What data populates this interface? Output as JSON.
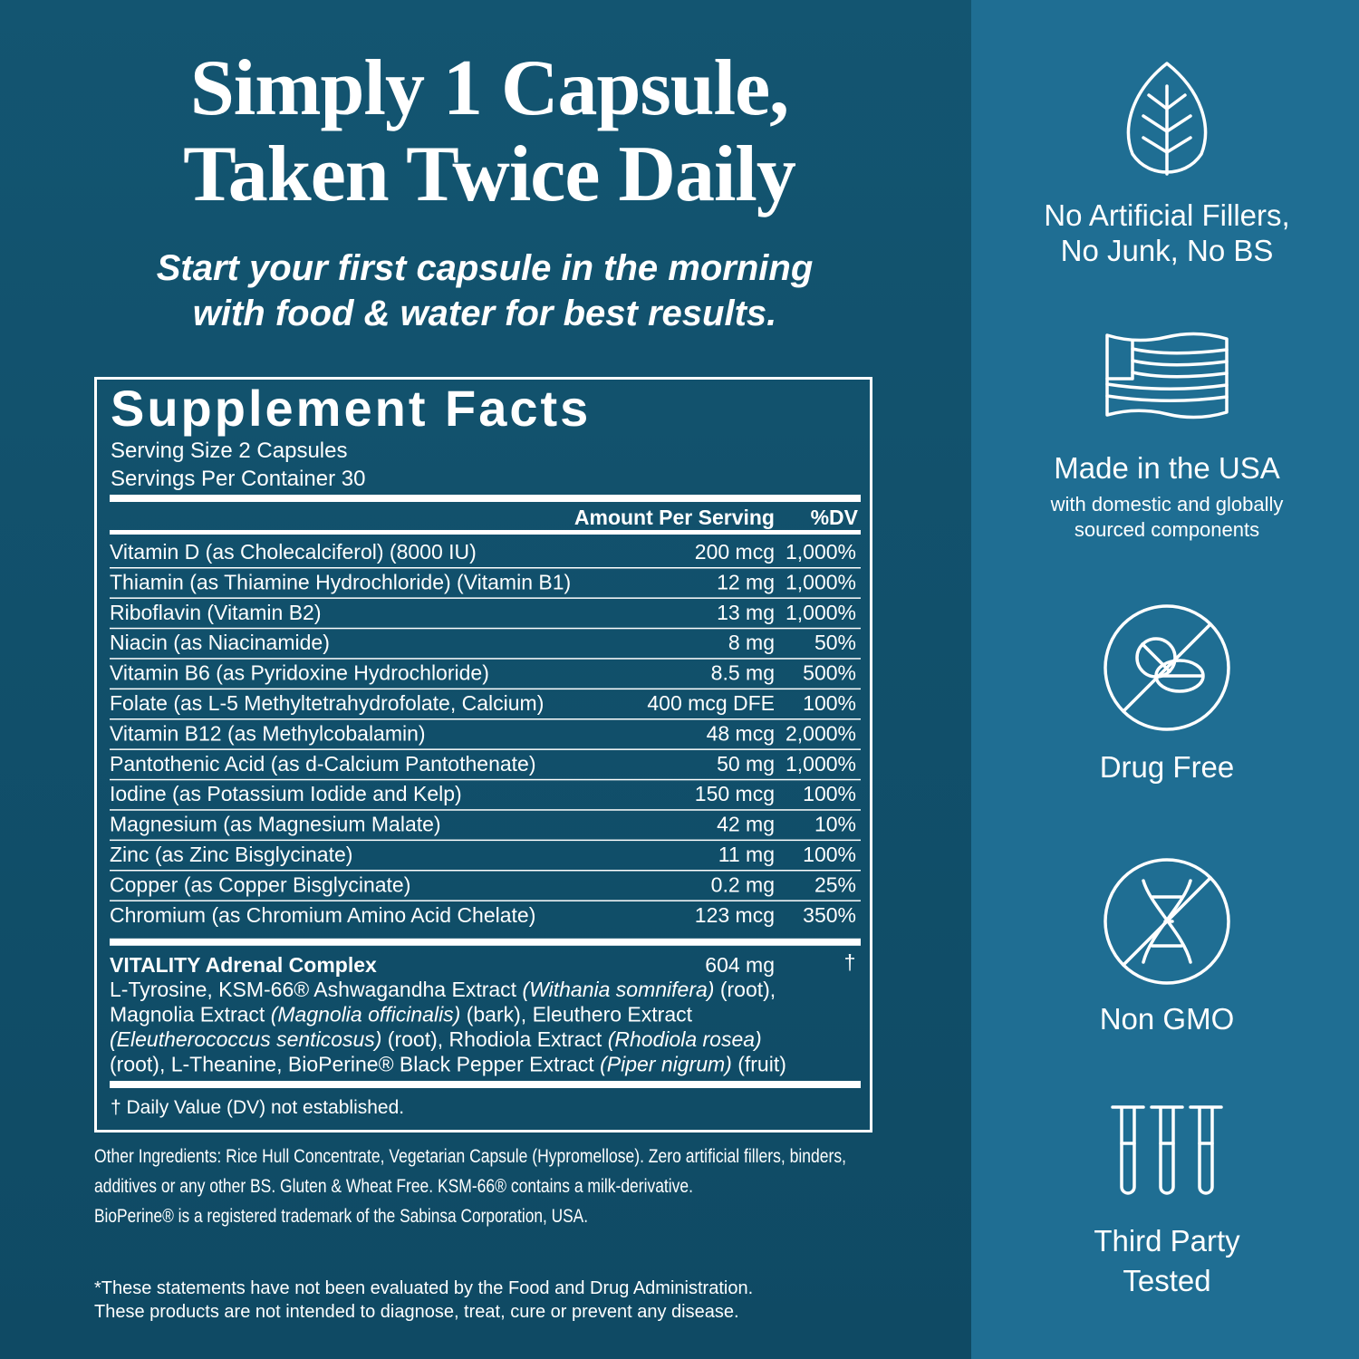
{
  "headline": {
    "lines": [
      "Simply 1 Capsule,",
      "Taken Twice Daily"
    ]
  },
  "subhead": {
    "lines": [
      "Start your first capsule in the morning",
      "with food & water for best results."
    ]
  },
  "facts": {
    "title": "Supplement Facts",
    "serving_size": "Serving Size 2 Capsules",
    "servings_per_container": "Servings Per Container 30",
    "header": {
      "amount": "Amount Per Serving",
      "dv": "%DV"
    },
    "rows": [
      [
        "Vitamin D (as Cholecalciferol) (8000 IU)",
        "200 mcg",
        "1,000%"
      ],
      [
        "Thiamin (as Thiamine Hydrochloride) (Vitamin B1)",
        "12 mg",
        "1,000%"
      ],
      [
        "Riboflavin (Vitamin B2)",
        "13 mg",
        "1,000%"
      ],
      [
        "Niacin (as Niacinamide)",
        "8 mg",
        "50%"
      ],
      [
        "Vitamin B6 (as Pyridoxine Hydrochloride)",
        "8.5 mg",
        "500%"
      ],
      [
        "Folate (as L-5 Methyltetrahydrofolate, Calcium)",
        "400 mcg DFE",
        "100%"
      ],
      [
        "Vitamin B12 (as Methylcobalamin)",
        "48 mcg",
        "2,000%"
      ],
      [
        "Pantothenic Acid (as d-Calcium Pantothenate)",
        "50 mg",
        "1,000%"
      ],
      [
        "Iodine (as Potassium Iodide and Kelp)",
        "150 mcg",
        "100%"
      ],
      [
        "Magnesium (as Magnesium Malate)",
        "42 mg",
        "10%"
      ],
      [
        "Zinc (as Zinc Bisglycinate)",
        "11 mg",
        "100%"
      ],
      [
        "Copper (as Copper Bisglycinate)",
        "0.2 mg",
        "25%"
      ],
      [
        "Chromium (as Chromium Amino Acid Chelate)",
        "123 mcg",
        "350%"
      ]
    ],
    "complex": {
      "name": "VITALITY Adrenal Complex",
      "amount": "604 mg",
      "dv": "†",
      "description": [
        [
          {
            "text": "L-Tyrosine, KSM-66® Ashwagandha Extract "
          },
          {
            "text": "(Withania somnifera)",
            "style": "italic"
          },
          {
            "text": " (root),"
          }
        ],
        [
          {
            "text": "Magnolia Extract "
          },
          {
            "text": "(Magnolia officinalis)",
            "style": "italic"
          },
          {
            "text": " (bark), Eleuthero Extract"
          }
        ],
        [
          {
            "text": "(Eleutherococcus senticosus)",
            "style": "italic"
          },
          {
            "text": " (root), Rhodiola Extract "
          },
          {
            "text": "(Rhodiola rosea)",
            "style": "italic"
          }
        ],
        [
          {
            "text": "(root), L-Theanine, BioPerine® Black Pepper Extract "
          },
          {
            "text": "(Piper nigrum)",
            "style": "italic"
          },
          {
            "text": " (fruit)"
          }
        ]
      ]
    },
    "footnote": "† Daily Value (DV) not established."
  },
  "other_ingredients": {
    "lines": [
      "Other Ingredients: Rice Hull Concentrate, Vegetarian Capsule (Hypromellose). Zero artificial fillers, binders,",
      "additives or any other BS. Gluten & Wheat Free. KSM-66® contains a milk-derivative.",
      "BioPerine® is a registered trademark of the Sabinsa Corporation, USA."
    ]
  },
  "disclaimer": {
    "lines": [
      "*These statements have not been evaluated by the Food and Drug Administration.",
      "These products are not intended to diagnose, treat, cure or prevent any disease."
    ]
  },
  "features": [
    {
      "title": [
        "No Artificial Fillers,",
        "No Junk, No BS"
      ]
    },
    {
      "title": [
        "Made in the USA"
      ],
      "subtitle": [
        "with domestic and globally",
        "sourced components"
      ]
    },
    {
      "title": [
        "Drug Free"
      ]
    },
    {
      "title": [
        "Non GMO"
      ]
    },
    {
      "title": [
        "Third Party",
        "Tested"
      ]
    }
  ]
}
